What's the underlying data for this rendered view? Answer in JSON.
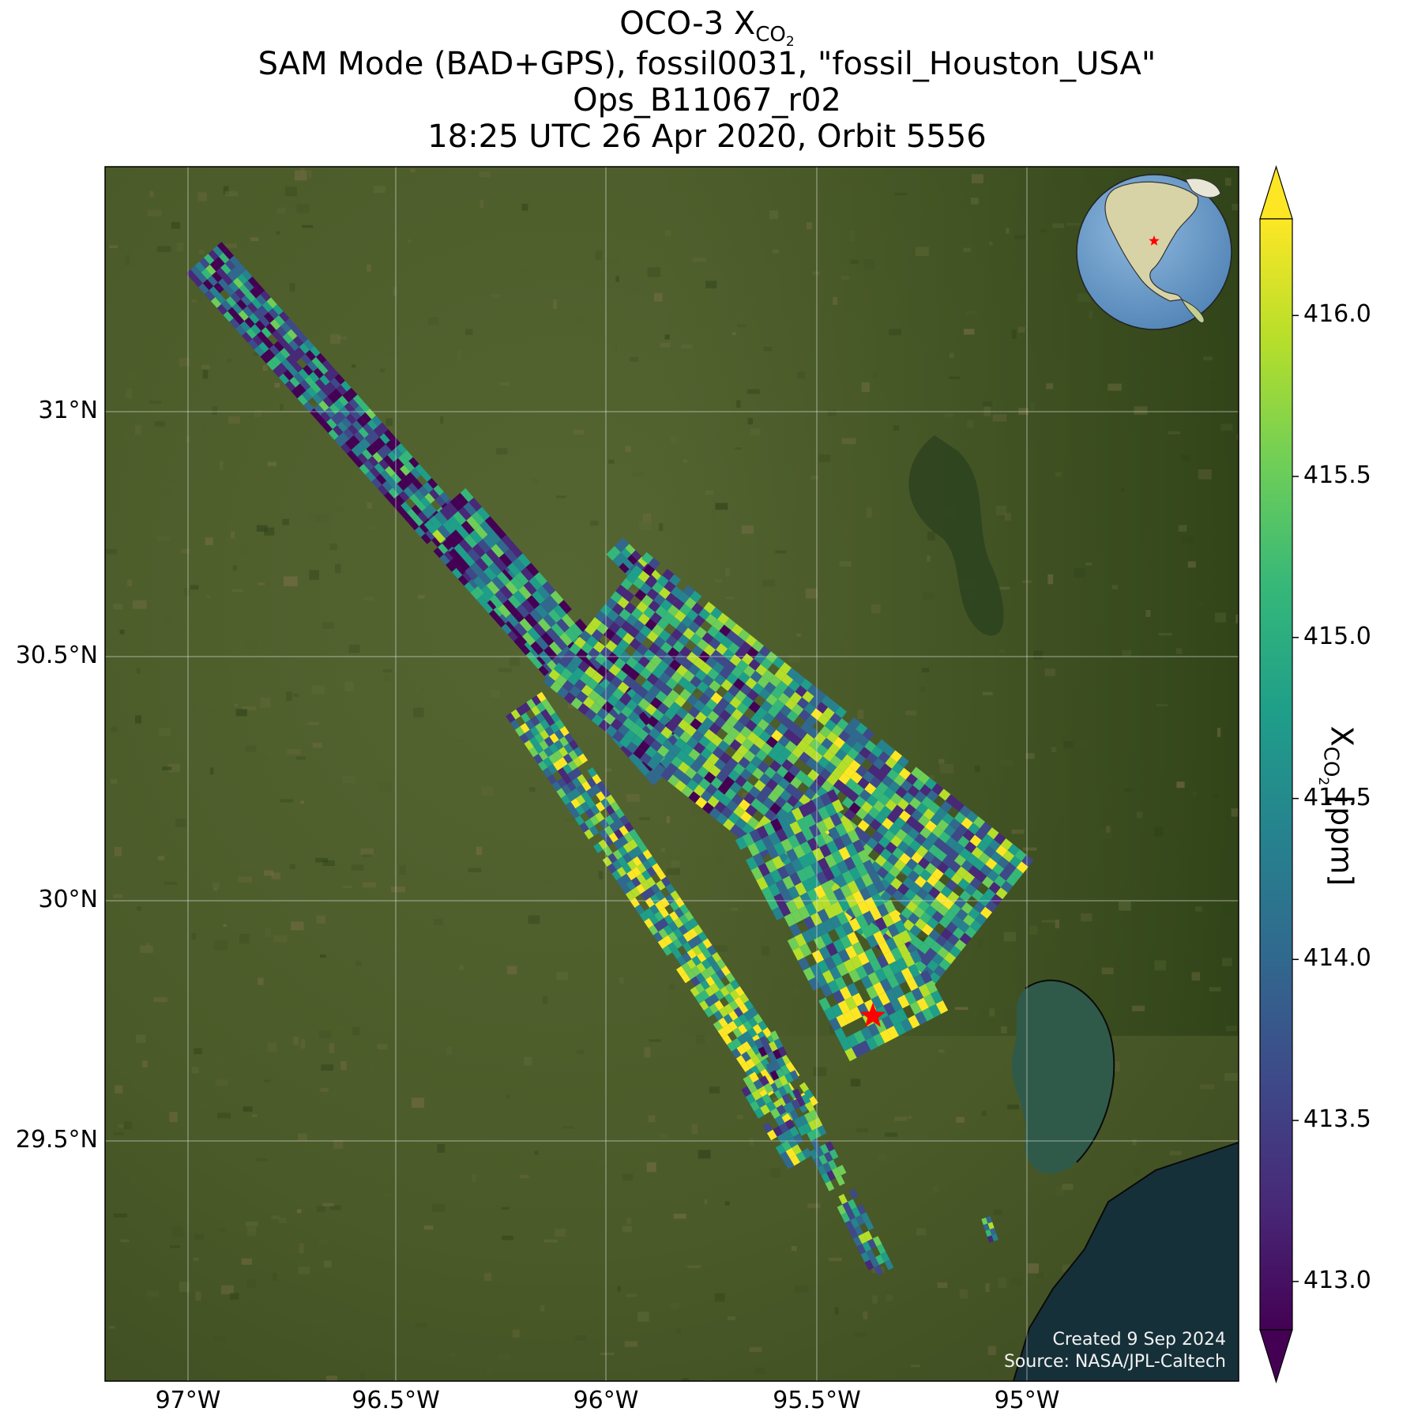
{
  "title": {
    "line1_main": "OCO-3 X",
    "line1_sub": "CO",
    "line1_subsub": "2",
    "line2": "SAM Mode (BAD+GPS), fossil0031, \"fossil_Houston_USA\"",
    "line3": "Ops_B11067_r02",
    "line4": "18:25 UTC 26 Apr 2020, Orbit 5556"
  },
  "map": {
    "lon_ticks": [
      "97°W",
      "96.5°W",
      "96°W",
      "95.5°W",
      "95°W"
    ],
    "lat_ticks": [
      "31°N",
      "30.5°N",
      "30°N",
      "29.5°N"
    ],
    "target_marker": "red-star",
    "credit_line1": "Created 9 Sep 2024",
    "credit_line2": "Source: NASA/JPL-Caltech",
    "colors": {
      "land": "#4a5a2a",
      "water": "#1f3a38",
      "grid": "#e6e6e6",
      "star": "#ff0000"
    }
  },
  "colorbar": {
    "ticks": [
      "416.0",
      "415.5",
      "415.0",
      "414.5",
      "414.0",
      "413.5",
      "413.0"
    ],
    "label_main": "X",
    "label_sub": "CO",
    "label_subsub": "2",
    "label_unit": " [ppm]",
    "colormap": "viridis",
    "colors": [
      "#440154",
      "#482878",
      "#3e4989",
      "#31688e",
      "#26828e",
      "#1f9e89",
      "#35b779",
      "#6ece58",
      "#b5de2b",
      "#fde725"
    ]
  },
  "inset_globe": {
    "water": "#5d93c4",
    "land": "#d8d6b0",
    "marker": "red-star"
  }
}
